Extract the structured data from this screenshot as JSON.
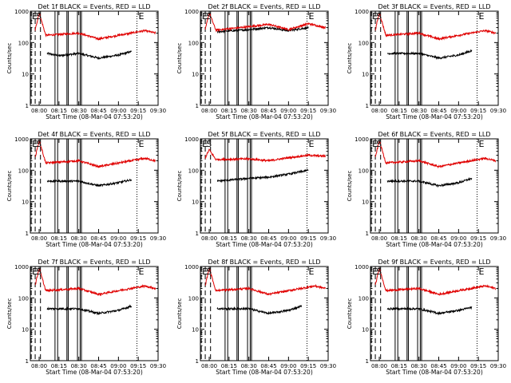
{
  "chart_data": [
    {
      "type": "line",
      "title": "Det 1f BLACK = Events, RED = LLD",
      "xlabel": "Start Time (08-Mar-04 07:53:20)",
      "ylabel": "Counts/sec",
      "ylog": true,
      "ylim": [
        1,
        1000
      ],
      "xlim": [
        "07:53:20",
        "09:30:00"
      ],
      "xticks": [
        "08:00",
        "08:15",
        "08:30",
        "08:45",
        "09:00",
        "09:15",
        "09:30"
      ],
      "yticks": [
        "1",
        "10",
        "100",
        "1000"
      ],
      "markers": [
        {
          "label": "E",
          "time": "07:54"
        },
        {
          "label": "S",
          "time": "07:57"
        }
      ],
      "extra_labels": [
        "E"
      ],
      "series": [
        {
          "name": "Events",
          "color": "#000000",
          "values": [
            [
              "08:06",
              45
            ],
            [
              "08:15",
              38
            ],
            [
              "08:30",
              45
            ],
            [
              "08:45",
              32
            ],
            [
              "09:00",
              40
            ],
            [
              "09:10",
              52
            ]
          ]
        },
        {
          "name": "LLD",
          "color": "#e00000",
          "values": [
            [
              "07:57",
              250
            ],
            [
              "08:00",
              900
            ],
            [
              "08:05",
              170
            ],
            [
              "08:30",
              200
            ],
            [
              "08:45",
              130
            ],
            [
              "09:00",
              170
            ],
            [
              "09:20",
              240
            ],
            [
              "09:28",
              200
            ]
          ]
        }
      ]
    },
    {
      "type": "line",
      "title": "Det 2f BLACK = Events, RED = LLD",
      "xlabel": "Start Time (08-Mar-04 07:53:20)",
      "ylabel": "Counts/sec",
      "ylog": true,
      "ylim": [
        1,
        1000
      ],
      "xlim": [
        "07:53:20",
        "09:30:00"
      ],
      "xticks": [
        "08:00",
        "08:15",
        "08:30",
        "08:45",
        "09:00",
        "09:15",
        "09:30"
      ],
      "yticks": [
        "1",
        "10",
        "100",
        "1000"
      ],
      "markers": [
        {
          "label": "E",
          "time": "07:54"
        },
        {
          "label": "S",
          "time": "07:57"
        }
      ],
      "extra_labels": [
        "E"
      ],
      "series": [
        {
          "name": "Events",
          "color": "#000000",
          "values": [
            [
              "08:06",
              220
            ],
            [
              "08:30",
              260
            ],
            [
              "08:45",
              300
            ],
            [
              "09:00",
              240
            ],
            [
              "09:15",
              300
            ]
          ]
        },
        {
          "name": "LLD",
          "color": "#e00000",
          "values": [
            [
              "07:57",
              250
            ],
            [
              "08:00",
              900
            ],
            [
              "08:05",
              250
            ],
            [
              "08:30",
              320
            ],
            [
              "08:45",
              380
            ],
            [
              "09:00",
              260
            ],
            [
              "09:15",
              400
            ],
            [
              "09:28",
              300
            ]
          ]
        }
      ]
    },
    {
      "type": "line",
      "title": "Det 3f BLACK = Events, RED = LLD",
      "xlabel": "Start Time (08-Mar-04 07:53:20)",
      "ylabel": "Counts/sec",
      "ylog": true,
      "ylim": [
        1,
        1000
      ],
      "xlim": [
        "07:53:20",
        "09:30:00"
      ],
      "xticks": [
        "08:00",
        "08:15",
        "08:30",
        "08:45",
        "09:00",
        "09:15",
        "09:30"
      ],
      "yticks": [
        "1",
        "10",
        "100",
        "1000"
      ],
      "markers": [
        {
          "label": "E",
          "time": "07:54"
        },
        {
          "label": "S",
          "time": "07:57"
        }
      ],
      "extra_labels": [
        "E"
      ],
      "series": [
        {
          "name": "Events",
          "color": "#000000",
          "values": [
            [
              "08:06",
              45
            ],
            [
              "08:30",
              45
            ],
            [
              "08:45",
              32
            ],
            [
              "09:00",
              40
            ],
            [
              "09:10",
              55
            ]
          ]
        },
        {
          "name": "LLD",
          "color": "#e00000",
          "values": [
            [
              "07:57",
              250
            ],
            [
              "08:00",
              900
            ],
            [
              "08:05",
              170
            ],
            [
              "08:30",
              200
            ],
            [
              "08:45",
              130
            ],
            [
              "09:00",
              170
            ],
            [
              "09:20",
              240
            ],
            [
              "09:28",
              200
            ]
          ]
        }
      ]
    },
    {
      "type": "line",
      "title": "Det 4f BLACK = Events, RED = LLD",
      "xlabel": "Start Time (08-Mar-04 07:53:20)",
      "ylabel": "Counts/sec",
      "ylog": true,
      "ylim": [
        1,
        1000
      ],
      "xlim": [
        "07:53:20",
        "09:30:00"
      ],
      "xticks": [
        "08:00",
        "08:15",
        "08:30",
        "08:45",
        "09:00",
        "09:15",
        "09:30"
      ],
      "yticks": [
        "1",
        "10",
        "100",
        "1000"
      ],
      "markers": [
        {
          "label": "E",
          "time": "07:54"
        },
        {
          "label": "S",
          "time": "07:57"
        }
      ],
      "extra_labels": [
        "E"
      ],
      "series": [
        {
          "name": "Events",
          "color": "#000000",
          "values": [
            [
              "08:06",
              45
            ],
            [
              "08:30",
              45
            ],
            [
              "08:45",
              32
            ],
            [
              "09:00",
              40
            ],
            [
              "09:10",
              50
            ]
          ]
        },
        {
          "name": "LLD",
          "color": "#e00000",
          "values": [
            [
              "07:57",
              250
            ],
            [
              "08:00",
              900
            ],
            [
              "08:05",
              170
            ],
            [
              "08:30",
              200
            ],
            [
              "08:45",
              130
            ],
            [
              "09:00",
              170
            ],
            [
              "09:20",
              240
            ],
            [
              "09:28",
              200
            ]
          ]
        }
      ]
    },
    {
      "type": "line",
      "title": "Det 5f BLACK = Events, RED = LLD",
      "xlabel": "Start Time (08-Mar-04 07:53:20)",
      "ylabel": "Counts/sec",
      "ylog": true,
      "ylim": [
        1,
        1000
      ],
      "xlim": [
        "07:53:20",
        "09:30:00"
      ],
      "xticks": [
        "08:00",
        "08:15",
        "08:30",
        "08:45",
        "09:00",
        "09:15",
        "09:30"
      ],
      "yticks": [
        "1",
        "10",
        "100",
        "1000"
      ],
      "markers": [
        {
          "label": "E",
          "time": "07:54"
        },
        {
          "label": "S",
          "time": "07:57"
        }
      ],
      "extra_labels": [
        "E"
      ],
      "series": [
        {
          "name": "Events",
          "color": "#000000",
          "values": [
            [
              "08:06",
              45
            ],
            [
              "08:30",
              55
            ],
            [
              "08:45",
              60
            ],
            [
              "09:00",
              75
            ],
            [
              "09:15",
              100
            ]
          ]
        },
        {
          "name": "LLD",
          "color": "#e00000",
          "values": [
            [
              "07:57",
              250
            ],
            [
              "08:00",
              450
            ],
            [
              "08:05",
              220
            ],
            [
              "08:30",
              230
            ],
            [
              "08:45",
              200
            ],
            [
              "09:00",
              250
            ],
            [
              "09:15",
              300
            ],
            [
              "09:28",
              280
            ]
          ]
        }
      ]
    },
    {
      "type": "line",
      "title": "Det 6f BLACK = Events, RED = LLD",
      "xlabel": "Start Time (08-Mar-04 07:53:20)",
      "ylabel": "Counts/sec",
      "ylog": true,
      "ylim": [
        1,
        1000
      ],
      "xlim": [
        "07:53:20",
        "09:30:00"
      ],
      "xticks": [
        "08:00",
        "08:15",
        "08:30",
        "08:45",
        "09:00",
        "09:15",
        "09:30"
      ],
      "yticks": [
        "1",
        "10",
        "100",
        "1000"
      ],
      "markers": [
        {
          "label": "E",
          "time": "07:54"
        },
        {
          "label": "S",
          "time": "07:57"
        }
      ],
      "extra_labels": [
        "E"
      ],
      "series": [
        {
          "name": "Events",
          "color": "#000000",
          "values": [
            [
              "08:06",
              45
            ],
            [
              "08:30",
              45
            ],
            [
              "08:45",
              32
            ],
            [
              "09:00",
              40
            ],
            [
              "09:10",
              55
            ]
          ]
        },
        {
          "name": "LLD",
          "color": "#e00000",
          "values": [
            [
              "07:57",
              250
            ],
            [
              "08:00",
              900
            ],
            [
              "08:05",
              170
            ],
            [
              "08:30",
              200
            ],
            [
              "08:45",
              130
            ],
            [
              "09:00",
              170
            ],
            [
              "09:20",
              240
            ],
            [
              "09:28",
              200
            ]
          ]
        }
      ]
    },
    {
      "type": "line",
      "title": "Det 7f BLACK = Events, RED = LLD",
      "xlabel": "Start Time (08-Mar-04 07:53:20)",
      "ylabel": "Counts/sec",
      "ylog": true,
      "ylim": [
        1,
        1000
      ],
      "xlim": [
        "07:53:20",
        "09:30:00"
      ],
      "xticks": [
        "08:00",
        "08:15",
        "08:30",
        "08:45",
        "09:00",
        "09:15",
        "09:30"
      ],
      "yticks": [
        "1",
        "10",
        "100",
        "1000"
      ],
      "markers": [
        {
          "label": "E",
          "time": "07:54"
        },
        {
          "label": "S",
          "time": "07:57"
        }
      ],
      "extra_labels": [
        "E"
      ],
      "series": [
        {
          "name": "Events",
          "color": "#000000",
          "values": [
            [
              "08:06",
              45
            ],
            [
              "08:30",
              45
            ],
            [
              "08:45",
              32
            ],
            [
              "09:00",
              40
            ],
            [
              "09:10",
              55
            ]
          ]
        },
        {
          "name": "LLD",
          "color": "#e00000",
          "values": [
            [
              "07:57",
              250
            ],
            [
              "08:00",
              900
            ],
            [
              "08:05",
              170
            ],
            [
              "08:30",
              200
            ],
            [
              "08:45",
              130
            ],
            [
              "09:00",
              170
            ],
            [
              "09:20",
              240
            ],
            [
              "09:28",
              200
            ]
          ]
        }
      ]
    },
    {
      "type": "line",
      "title": "Det 8f BLACK = Events, RED = LLD",
      "xlabel": "Start Time (08-Mar-04 07:53:20)",
      "ylabel": "Counts/sec",
      "ylog": true,
      "ylim": [
        1,
        1000
      ],
      "xlim": [
        "07:53:20",
        "09:30:00"
      ],
      "xticks": [
        "08:00",
        "08:15",
        "08:30",
        "08:45",
        "09:00",
        "09:15",
        "09:30"
      ],
      "yticks": [
        "1",
        "10",
        "100",
        "1000"
      ],
      "markers": [
        {
          "label": "E",
          "time": "07:54"
        },
        {
          "label": "S",
          "time": "07:57"
        }
      ],
      "extra_labels": [
        "E"
      ],
      "series": [
        {
          "name": "Events",
          "color": "#000000",
          "values": [
            [
              "08:06",
              45
            ],
            [
              "08:30",
              45
            ],
            [
              "08:45",
              32
            ],
            [
              "09:00",
              40
            ],
            [
              "09:10",
              55
            ]
          ]
        },
        {
          "name": "LLD",
          "color": "#e00000",
          "values": [
            [
              "07:57",
              250
            ],
            [
              "08:00",
              900
            ],
            [
              "08:05",
              170
            ],
            [
              "08:30",
              200
            ],
            [
              "08:45",
              130
            ],
            [
              "09:00",
              170
            ],
            [
              "09:20",
              240
            ],
            [
              "09:28",
              200
            ]
          ]
        }
      ]
    },
    {
      "type": "line",
      "title": "Det 9f BLACK = Events, RED = LLD",
      "xlabel": "Start Time (08-Mar-04 07:53:20)",
      "ylabel": "Counts/sec",
      "ylog": true,
      "ylim": [
        1,
        1000
      ],
      "xlim": [
        "07:53:20",
        "09:30:00"
      ],
      "xticks": [
        "08:00",
        "08:15",
        "08:30",
        "08:45",
        "09:00",
        "09:15",
        "09:30"
      ],
      "yticks": [
        "1",
        "10",
        "100",
        "1000"
      ],
      "markers": [
        {
          "label": "E",
          "time": "07:54"
        },
        {
          "label": "S",
          "time": "07:57"
        }
      ],
      "extra_labels": [
        "E"
      ],
      "series": [
        {
          "name": "Events",
          "color": "#000000",
          "values": [
            [
              "08:06",
              45
            ],
            [
              "08:30",
              45
            ],
            [
              "08:45",
              32
            ],
            [
              "09:00",
              40
            ],
            [
              "09:10",
              50
            ]
          ]
        },
        {
          "name": "LLD",
          "color": "#e00000",
          "values": [
            [
              "07:57",
              250
            ],
            [
              "08:00",
              900
            ],
            [
              "08:05",
              170
            ],
            [
              "08:30",
              200
            ],
            [
              "08:45",
              130
            ],
            [
              "09:00",
              170
            ],
            [
              "09:20",
              240
            ],
            [
              "09:28",
              200
            ]
          ]
        }
      ]
    }
  ],
  "colors": {
    "events": "#000000",
    "lld": "#e00000"
  }
}
